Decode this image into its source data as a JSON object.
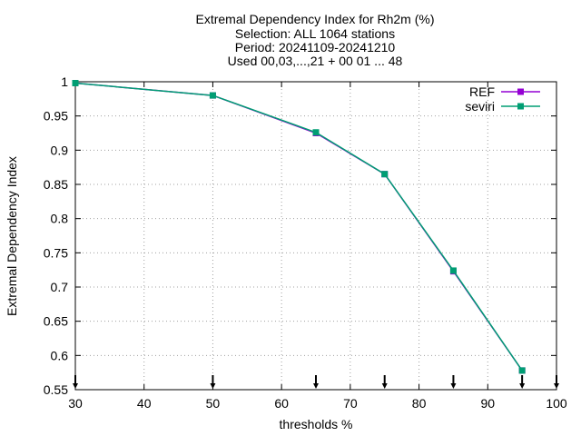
{
  "chart_data": {
    "type": "line",
    "title_lines": [
      "Extremal Dependency Index  for Rh2m (%)",
      "Selection: ALL    1064 stations",
      "Period: 20241109-20241210",
      "Used 00,03,...,21 + 00 01 ... 48"
    ],
    "xlabel": "thresholds %",
    "ylabel": "Extremal Dependency Index",
    "xlim": [
      30,
      100
    ],
    "ylim": [
      0.55,
      1.0
    ],
    "xticks": [
      30,
      40,
      50,
      60,
      70,
      80,
      90,
      100
    ],
    "yticks": [
      0.55,
      0.6,
      0.65,
      0.7,
      0.75,
      0.8,
      0.85,
      0.9,
      0.95,
      1
    ],
    "ytick_labels": [
      "0.55",
      "0.6",
      "0.65",
      "0.7",
      "0.75",
      "0.8",
      "0.85",
      "0.9",
      "0.95",
      "1"
    ],
    "grid": true,
    "legend_position": "top-right",
    "x": [
      30,
      50,
      65,
      75,
      85,
      95
    ],
    "series": [
      {
        "name": "REF",
        "color": "#9400d3",
        "marker": "square",
        "values": [
          0.998,
          0.98,
          0.925,
          0.865,
          0.723,
          0.578
        ]
      },
      {
        "name": "seviri",
        "color": "#009e73",
        "marker": "square",
        "values": [
          0.998,
          0.98,
          0.926,
          0.865,
          0.724,
          0.578
        ]
      }
    ],
    "annotations": {
      "arrow_markers_at_x": [
        30,
        50,
        65,
        75,
        85,
        95,
        100
      ]
    }
  }
}
